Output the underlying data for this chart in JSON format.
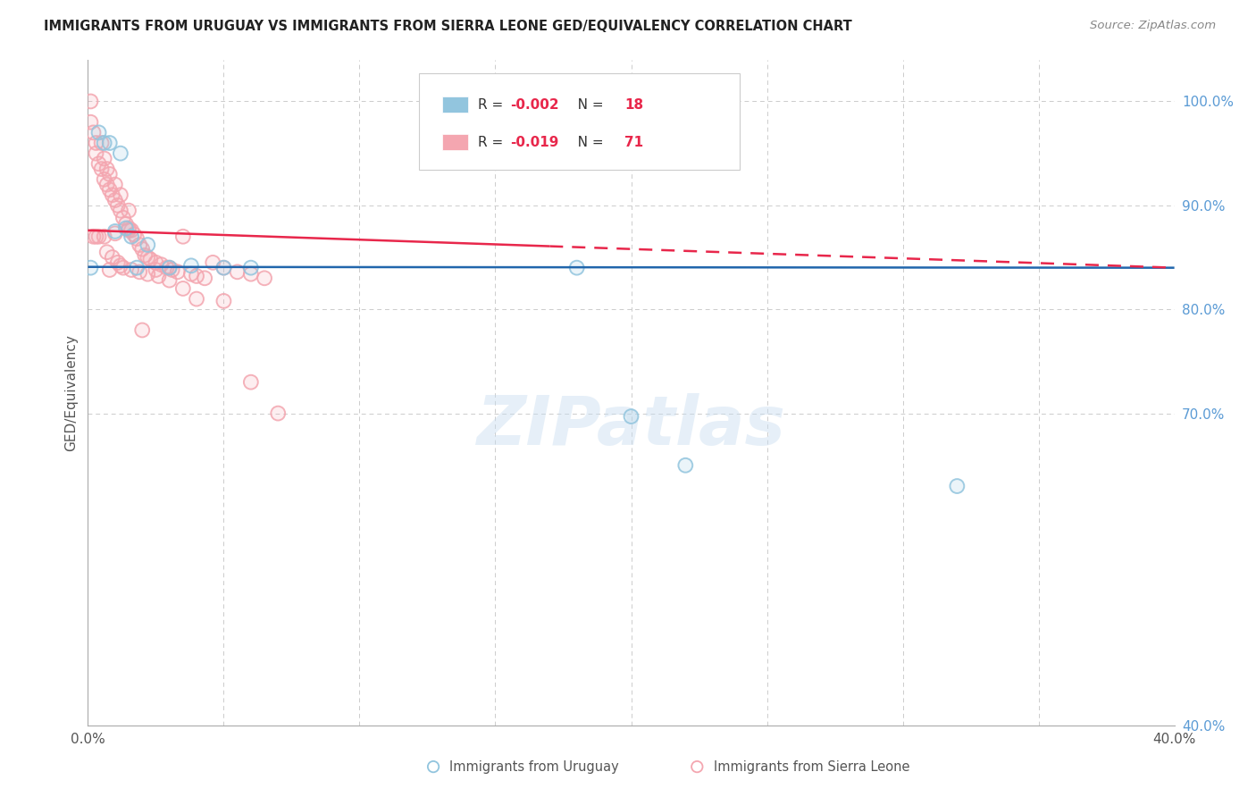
{
  "title": "IMMIGRANTS FROM URUGUAY VS IMMIGRANTS FROM SIERRA LEONE GED/EQUIVALENCY CORRELATION CHART",
  "source": "Source: ZipAtlas.com",
  "ylabel": "GED/Equivalency",
  "xlim": [
    0.0,
    0.4
  ],
  "ylim": [
    0.4,
    1.04
  ],
  "x_tick_positions": [
    0.0,
    0.05,
    0.1,
    0.15,
    0.2,
    0.25,
    0.3,
    0.35,
    0.4
  ],
  "x_tick_labels": [
    "0.0%",
    "",
    "",
    "",
    "",
    "",
    "",
    "",
    "40.0%"
  ],
  "y_tick_positions": [
    0.4,
    0.5,
    0.6,
    0.7,
    0.8,
    0.9,
    1.0
  ],
  "y_tick_labels": [
    "40.0%",
    "",
    "",
    "70.0%",
    "80.0%",
    "90.0%",
    "100.0%"
  ],
  "uruguay_color": "#92c5de",
  "sierra_leone_color": "#f4a6b0",
  "trend_uruguay_color": "#2166ac",
  "trend_sierra_leone_color": "#e8274b",
  "watermark": "ZIPatlas",
  "legend_R_uruguay": "-0.002",
  "legend_N_uruguay": "18",
  "legend_R_sierra": "-0.019",
  "legend_N_sierra": "71",
  "uruguay_x": [
    0.001,
    0.004,
    0.006,
    0.008,
    0.01,
    0.012,
    0.014,
    0.016,
    0.018,
    0.022,
    0.03,
    0.038,
    0.05,
    0.06,
    0.18,
    0.2,
    0.22,
    0.32
  ],
  "uruguay_y": [
    0.84,
    0.97,
    0.96,
    0.96,
    0.875,
    0.95,
    0.878,
    0.87,
    0.84,
    0.862,
    0.84,
    0.842,
    0.84,
    0.84,
    0.84,
    0.697,
    0.65,
    0.63
  ],
  "sierra_leone_x": [
    0.001,
    0.001,
    0.002,
    0.003,
    0.003,
    0.004,
    0.005,
    0.005,
    0.006,
    0.006,
    0.007,
    0.007,
    0.008,
    0.008,
    0.009,
    0.01,
    0.01,
    0.011,
    0.012,
    0.012,
    0.013,
    0.014,
    0.015,
    0.015,
    0.016,
    0.017,
    0.018,
    0.019,
    0.02,
    0.021,
    0.022,
    0.023,
    0.025,
    0.027,
    0.029,
    0.031,
    0.033,
    0.035,
    0.038,
    0.04,
    0.043,
    0.046,
    0.05,
    0.055,
    0.06,
    0.065,
    0.02,
    0.025,
    0.03,
    0.01,
    0.015,
    0.008,
    0.012,
    0.006,
    0.004,
    0.003,
    0.002,
    0.007,
    0.009,
    0.011,
    0.013,
    0.016,
    0.019,
    0.022,
    0.026,
    0.03,
    0.035,
    0.04,
    0.05,
    0.06,
    0.07
  ],
  "sierra_leone_y": [
    1.0,
    0.98,
    0.97,
    0.96,
    0.95,
    0.94,
    0.935,
    0.96,
    0.925,
    0.945,
    0.92,
    0.935,
    0.915,
    0.93,
    0.91,
    0.905,
    0.92,
    0.9,
    0.895,
    0.91,
    0.888,
    0.882,
    0.878,
    0.895,
    0.876,
    0.872,
    0.868,
    0.862,
    0.858,
    0.852,
    0.85,
    0.848,
    0.845,
    0.843,
    0.84,
    0.838,
    0.836,
    0.87,
    0.834,
    0.832,
    0.83,
    0.845,
    0.84,
    0.836,
    0.834,
    0.83,
    0.78,
    0.838,
    0.84,
    0.873,
    0.876,
    0.838,
    0.842,
    0.87,
    0.87,
    0.87,
    0.87,
    0.855,
    0.85,
    0.845,
    0.84,
    0.838,
    0.836,
    0.834,
    0.832,
    0.828,
    0.82,
    0.81,
    0.808,
    0.73,
    0.7
  ],
  "trend_uy_x0": 0.0,
  "trend_uy_y0": 0.8408,
  "trend_uy_x1": 0.4,
  "trend_uy_y1": 0.84,
  "trend_sl_x0": 0.0,
  "trend_sl_y0": 0.876,
  "trend_sl_x1": 0.4,
  "trend_sl_y1": 0.84
}
